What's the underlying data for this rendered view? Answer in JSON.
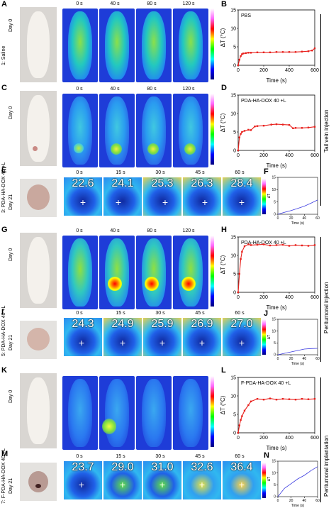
{
  "panels": {
    "A": "A",
    "B": "B",
    "C": "C",
    "D": "D",
    "E": "E",
    "F": "F",
    "G": "G",
    "H": "H",
    "I": "I",
    "J": "J",
    "K": "K",
    "L": "L",
    "M": "M",
    "N": "N"
  },
  "row_labels": {
    "r1": "1: Saline",
    "r3": "3: PDA-HA-DOX 40 +L",
    "r5": "5: PDA-HA-DOX 40 +L",
    "r7": "7: F-PDA-HA-DOX 40 +L"
  },
  "day_labels": {
    "day0": "Day 0",
    "day21": "Day 21"
  },
  "times_long": [
    "0 s",
    "40 s",
    "80 s",
    "120 s"
  ],
  "times_short": [
    "0 s",
    "15 s",
    "30 s",
    "45 s",
    "60 s"
  ],
  "zoom_temps": {
    "E": [
      "22.6",
      "24.1",
      "25.3",
      "26.3",
      "28.4"
    ],
    "I": [
      "24.3",
      "24.9",
      "25.9",
      "26.9",
      "27.0"
    ],
    "M": [
      "23.7",
      "29.0",
      "31.0",
      "32.6",
      "36.4"
    ]
  },
  "side_titles": {
    "tail": "Tail vein injection",
    "peritumoral_inj": "Peritumoral injection",
    "peritumoral_imp": "Peritumoral implantation"
  },
  "colors": {
    "curve": "#e8201c",
    "small_curve": "#3a3ae0",
    "thermal_bg": "#2a52e0"
  },
  "chart_data": [
    {
      "id": "B",
      "type": "line",
      "label": "PBS",
      "xlabel": "Time (s)",
      "ylabel": "ΔT (°C)",
      "xlim": [
        0,
        600
      ],
      "ylim": [
        0,
        15
      ],
      "xticks": [
        "0",
        "200",
        "400",
        "600"
      ],
      "yticks": [
        "0",
        "5",
        "10",
        "15"
      ],
      "x": [
        0,
        10,
        20,
        30,
        40,
        60,
        80,
        100,
        150,
        200,
        250,
        300,
        350,
        400,
        450,
        500,
        550,
        580,
        600
      ],
      "y": [
        0,
        1.5,
        2.5,
        3.0,
        3.2,
        3.3,
        3.4,
        3.4,
        3.5,
        3.5,
        3.5,
        3.6,
        3.6,
        3.6,
        3.6,
        3.7,
        3.8,
        4.0,
        4.6
      ]
    },
    {
      "id": "D",
      "type": "line",
      "label": "PDA-HA-DOX 40 +L",
      "xlabel": "Time (s)",
      "ylabel": "ΔT (°C)",
      "xlim": [
        0,
        600
      ],
      "ylim": [
        0,
        15
      ],
      "xticks": [
        "0",
        "200",
        "400",
        "600"
      ],
      "yticks": [
        "0",
        "5",
        "10",
        "15"
      ],
      "x": [
        0,
        10,
        20,
        30,
        50,
        80,
        100,
        130,
        150,
        200,
        260,
        300,
        350,
        400,
        430,
        450,
        500,
        550,
        600
      ],
      "y": [
        0,
        3.5,
        4.5,
        5.0,
        5.3,
        5.6,
        5.5,
        6.5,
        6.6,
        6.7,
        7.0,
        7.1,
        7.0,
        6.9,
        6.0,
        6.1,
        6.1,
        6.2,
        6.4
      ]
    },
    {
      "id": "F",
      "type": "line",
      "label": "",
      "xlabel": "Time (s)",
      "ylabel": "ΔT",
      "xlim": [
        0,
        60
      ],
      "ylim": [
        0,
        15
      ],
      "xticks": [
        "0",
        "20",
        "40",
        "60"
      ],
      "yticks": [
        "0",
        "5",
        "10",
        "15"
      ],
      "x": [
        0,
        10,
        20,
        30,
        40,
        50,
        60
      ],
      "y": [
        0,
        0.8,
        1.5,
        2.4,
        3.3,
        4.5,
        5.8
      ]
    },
    {
      "id": "H",
      "type": "line",
      "label": "PDA-HA-DOX 40 +L",
      "xlabel": "Time (s)",
      "ylabel": "ΔT (°C)",
      "xlim": [
        0,
        600
      ],
      "ylim": [
        0,
        15
      ],
      "xticks": [
        "0",
        "200",
        "400",
        "600"
      ],
      "yticks": [
        "0",
        "5",
        "10",
        "15"
      ],
      "x": [
        0,
        10,
        20,
        30,
        50,
        80,
        100,
        150,
        200,
        250,
        300,
        350,
        400,
        450,
        500,
        550,
        600
      ],
      "y": [
        0,
        5,
        9,
        11,
        12.5,
        13,
        12.8,
        12.9,
        13,
        12.7,
        12.8,
        12.9,
        12.6,
        12.8,
        12.7,
        12.6,
        12.8
      ]
    },
    {
      "id": "J",
      "type": "line",
      "label": "",
      "xlabel": "Time (s)",
      "ylabel": "ΔT",
      "xlim": [
        0,
        60
      ],
      "ylim": [
        0,
        15
      ],
      "xticks": [
        "0",
        "20",
        "40",
        "60"
      ],
      "yticks": [
        "0",
        "5",
        "10",
        "15"
      ],
      "x": [
        0,
        10,
        20,
        30,
        40,
        50,
        60
      ],
      "y": [
        0,
        0.6,
        1.2,
        1.8,
        2.4,
        2.6,
        2.7
      ]
    },
    {
      "id": "L",
      "type": "line",
      "label": "F-PDA-HA-DOX 40 +L",
      "xlabel": "Time (s)",
      "ylabel": "ΔT (°C)",
      "xlim": [
        0,
        600
      ],
      "ylim": [
        0,
        15
      ],
      "xticks": [
        "0",
        "200",
        "400",
        "600"
      ],
      "yticks": [
        "0",
        "5",
        "10",
        "15"
      ],
      "x": [
        0,
        10,
        20,
        30,
        50,
        80,
        100,
        150,
        200,
        250,
        300,
        350,
        400,
        450,
        500,
        550,
        600
      ],
      "y": [
        0,
        2,
        3.5,
        4.5,
        6,
        7.5,
        8.5,
        9.2,
        9.0,
        9.3,
        9.0,
        9.2,
        9.1,
        9.0,
        9.2,
        9.1,
        9.2
      ]
    },
    {
      "id": "N",
      "type": "line",
      "label": "",
      "xlabel": "Time (s)",
      "ylabel": "ΔT",
      "xlim": [
        0,
        60
      ],
      "ylim": [
        0,
        15
      ],
      "xticks": [
        "0",
        "20",
        "40",
        "60"
      ],
      "yticks": [
        "0",
        "5",
        "10",
        "15"
      ],
      "x": [
        0,
        10,
        20,
        30,
        40,
        50,
        60
      ],
      "y": [
        0,
        3.5,
        5.5,
        7.5,
        9,
        11,
        12.7
      ]
    }
  ]
}
